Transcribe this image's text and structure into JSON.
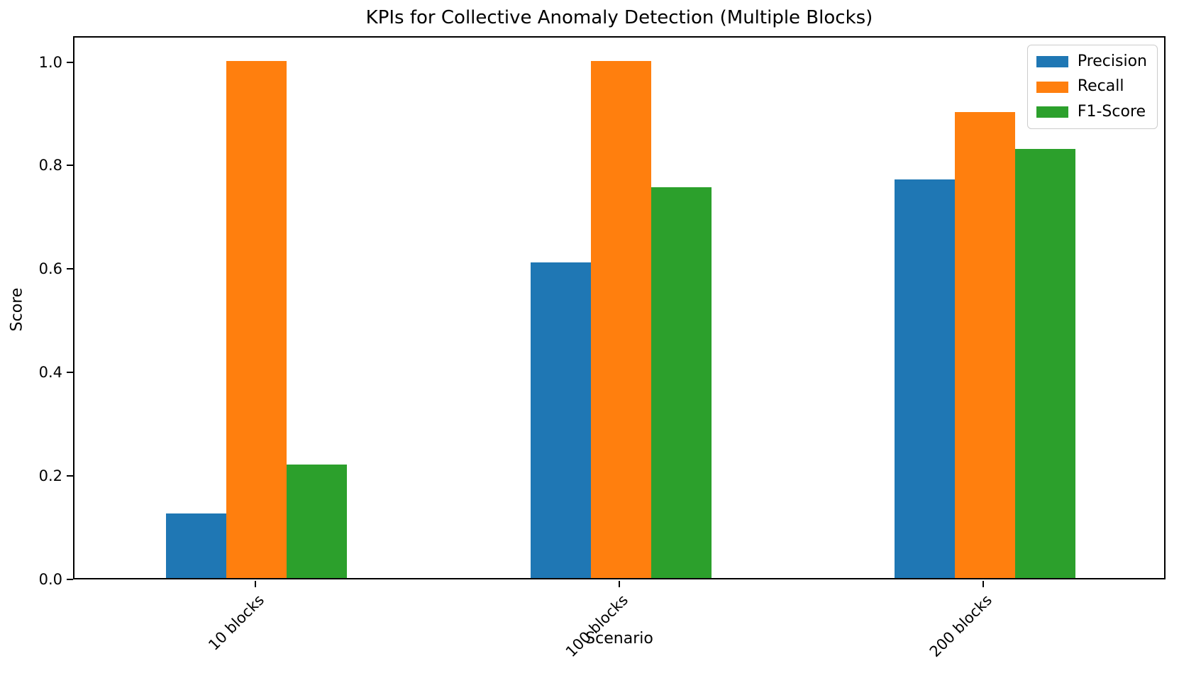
{
  "chart_data": {
    "type": "bar",
    "title": "KPIs for Collective Anomaly Detection (Multiple Blocks)",
    "xlabel": "Scenario",
    "ylabel": "Score",
    "categories": [
      "10 blocks",
      "100 blocks",
      "200 blocks"
    ],
    "series": [
      {
        "name": "Precision",
        "color": "#1f77b4",
        "values": [
          0.125,
          0.61,
          0.77
        ]
      },
      {
        "name": "Recall",
        "color": "#ff7f0e",
        "values": [
          1.0,
          1.0,
          0.9
        ]
      },
      {
        "name": "F1-Score",
        "color": "#2ca02c",
        "values": [
          0.22,
          0.755,
          0.83
        ]
      }
    ],
    "yticks": [
      0.0,
      0.2,
      0.4,
      0.6,
      0.8,
      1.0
    ],
    "ytick_labels": [
      "0.0",
      "0.2",
      "0.4",
      "0.6",
      "0.8",
      "1.0"
    ],
    "ylim": [
      0,
      1.05
    ],
    "xtick_rotation_deg": 45,
    "grid": false,
    "legend_position": "upper right",
    "axis_color": "#000000",
    "background_color": "#ffffff"
  }
}
